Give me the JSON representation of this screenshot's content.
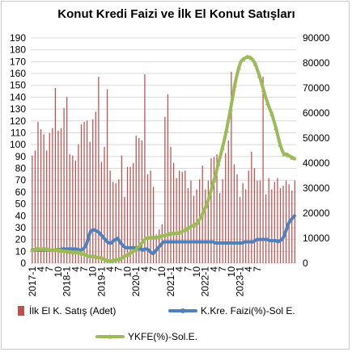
{
  "chart_data": {
    "type": "bar",
    "title": "Konut Kredi Faizi ve İlk El Konut Satışları",
    "x_labels": [
      "2017-1",
      "4",
      "7",
      "10",
      "2018-1",
      "4",
      "7",
      "10",
      "2019-1",
      "4",
      "7",
      "10",
      "2020-1",
      "4",
      "7",
      "10",
      "2021-1",
      "4",
      "7",
      "10",
      "2022-1",
      "4",
      "7",
      "10",
      "2023-1",
      "4",
      "7"
    ],
    "y_left": {
      "min": 0,
      "max": 190,
      "step": 10
    },
    "y_right": {
      "min": 0,
      "max": 90000,
      "step": 10000
    },
    "grid": true,
    "legend_position": "bottom",
    "series": [
      {
        "name": "İlk El K. Satış (Adet)",
        "kind": "bar",
        "axis": "right",
        "color": "#c0504d",
        "values": [
          43000,
          45000,
          56500,
          53500,
          51500,
          45000,
          52000,
          54000,
          70000,
          53000,
          54000,
          62000,
          66500,
          43500,
          43000,
          41000,
          47500,
          55500,
          56500,
          57000,
          48500,
          57500,
          60500,
          74500,
          40500,
          46500,
          69500,
          37000,
          32500,
          32000,
          33500,
          43000,
          26500,
          38500,
          38500,
          40000,
          51000,
          50000,
          49000,
          75500,
          35500,
          37000,
          30500,
          11500,
          13500,
          15500,
          58500,
          67500,
          46500,
          40000,
          34000,
          37000,
          36500,
          37000,
          30000,
          33000,
          27000,
          29500,
          33500,
          39000,
          29500,
          33000,
          42000,
          42500,
          43500,
          28000,
          33500,
          44000,
          49000,
          76500,
          39500,
          35500,
          26500,
          32000,
          29500,
          37000,
          44500,
          38000,
          33000,
          33000,
          74500,
          27500,
          34000,
          29500,
          32500,
          34000,
          30000,
          31000,
          33000,
          31500,
          29000,
          33000
        ]
      },
      {
        "name": "K.Kre. Faizi(%)-Sol E.",
        "kind": "line",
        "axis": "left",
        "color": "#4f81bd",
        "values": [
          11.5,
          11.5,
          11.2,
          11,
          11,
          11,
          11,
          11,
          11,
          11,
          11,
          11,
          11.5,
          11.5,
          12,
          12,
          12,
          12,
          12,
          12,
          12,
          12,
          11.5,
          11,
          11.5,
          13,
          16,
          22,
          27,
          28,
          28,
          27,
          26,
          24,
          22,
          20,
          18,
          17,
          17,
          19,
          20,
          21,
          18,
          16,
          14,
          13,
          13,
          13,
          13,
          13,
          12,
          12,
          12,
          11,
          12,
          12,
          11,
          9,
          8,
          10,
          12,
          14,
          16,
          18,
          18,
          18,
          18,
          18,
          18,
          18,
          18,
          18,
          18,
          18,
          18,
          18,
          18,
          18,
          18,
          18,
          18,
          18,
          18,
          18,
          18,
          18,
          18,
          18,
          17,
          17,
          17,
          17,
          17,
          17,
          17,
          17,
          17,
          17,
          17,
          17,
          17,
          17,
          18,
          18,
          18,
          18,
          18,
          19,
          20,
          20,
          20,
          20,
          20,
          20,
          19,
          19,
          19,
          19,
          18,
          19,
          20,
          23,
          28,
          33,
          36,
          38,
          40
        ]
      },
      {
        "name": "YKFE(%)-Sol.E.",
        "kind": "line-marker",
        "axis": "left",
        "color": "#9bbb59",
        "values": [
          11,
          11.5,
          12,
          12,
          12,
          12,
          12,
          11.5,
          11.5,
          11,
          11,
          11,
          11,
          11,
          10.5,
          10,
          10,
          10,
          9.5,
          9,
          9,
          9,
          9,
          9,
          8,
          7.5,
          7,
          6,
          6,
          5.5,
          5.5,
          5,
          5,
          4.5,
          4,
          3,
          2.5,
          2,
          2,
          2,
          2.5,
          3,
          3.5,
          4,
          5,
          6,
          7,
          8,
          9,
          10,
          11,
          13,
          15,
          17,
          19,
          21,
          21.5,
          21.5,
          21.5,
          21.5,
          22,
          22,
          22.5,
          23,
          23.5,
          24,
          24.5,
          25,
          25,
          25,
          25.5,
          25.5,
          26,
          27,
          28,
          29,
          30,
          31,
          32,
          33,
          34,
          37,
          40,
          44,
          48,
          52,
          58,
          64,
          70,
          76,
          84,
          90,
          97,
          104,
          112,
          121,
          130,
          140,
          150,
          158,
          165,
          170,
          172,
          173,
          174,
          174,
          173,
          171,
          168,
          163,
          158,
          152,
          146,
          140,
          135,
          130,
          126,
          120,
          114,
          107,
          100,
          95,
          92,
          92,
          91,
          90,
          89,
          88
        ]
      }
    ]
  }
}
